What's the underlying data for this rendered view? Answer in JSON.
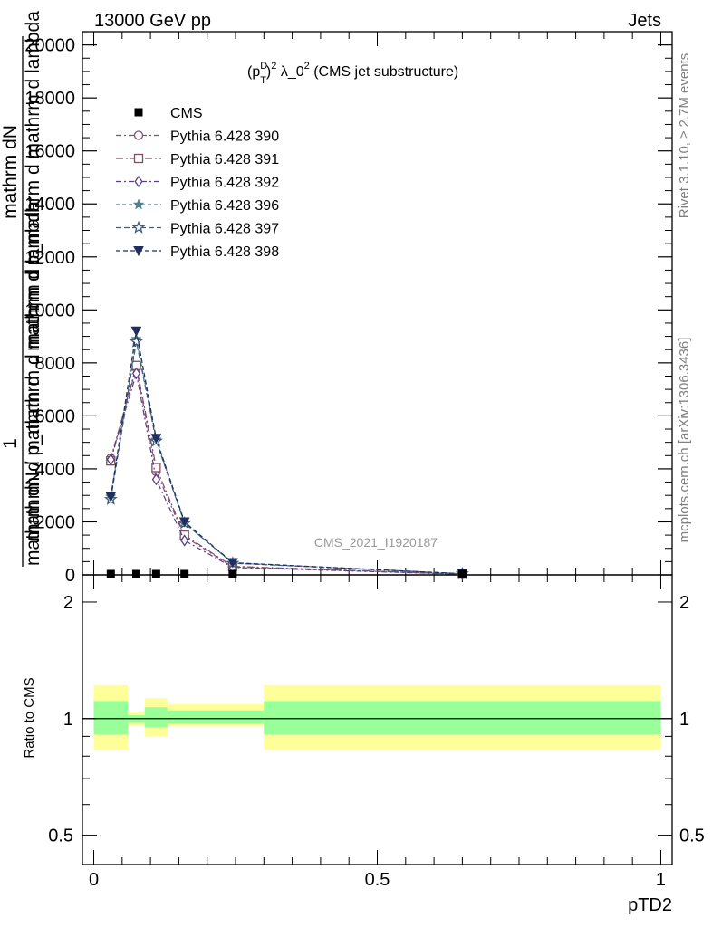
{
  "header": {
    "left": "13000 GeV pp",
    "right": "Jets"
  },
  "side_labels": {
    "rivet": "Rivet 3.1.10, ≥ 2.7M events",
    "mcplots": "mcplots.cern.ch [arXiv:1306.3436]"
  },
  "chart_data": [
    {
      "type": "line",
      "title": "(p_T^D)^2 λ_0^2 (CMS jet substructure)",
      "title_parts": {
        "p": "(p",
        "sup_d": "D",
        "sub_t": "T",
        "close": ")",
        "sup2": "2",
        "lambda": " λ_0",
        "sup2b": "2",
        "rest": " (CMS jet substructure)"
      },
      "watermark": "CMS_2021_I1920187",
      "ylabel": "1 / mathrm dN / mathrm d p_mathrm d mathrm d lambda",
      "ylabel_parts": {
        "one": "1",
        "dN_top": "mathrm dN",
        "den_top": "mathrm d p_mathrm d mathrm d lambda",
        "dN": "mathrm dN / mathrm d",
        "rest": "mathrm d p_mathrm d mathrm d lambda"
      },
      "xlim": [
        -0.02,
        1.02
      ],
      "ylim": [
        0,
        20500
      ],
      "yticks": [
        0,
        2000,
        4000,
        6000,
        8000,
        10000,
        12000,
        14000,
        16000,
        18000,
        20000
      ],
      "ytick_labels": [
        "0",
        "2000",
        "4000",
        "6000",
        "8000",
        "10000",
        "12000",
        "14000",
        "16000",
        "18000",
        "20000"
      ],
      "legend_position": "top-left",
      "cms": {
        "name": "CMS",
        "x": [
          0.03,
          0.075,
          0.11,
          0.16,
          0.245,
          0.65
        ],
        "y": [
          0,
          0,
          0,
          0,
          0,
          0
        ]
      },
      "series": [
        {
          "name": "Pythia 6.428 390",
          "color": "#7f4f7f",
          "marker": "circle-open",
          "x": [
            0.03,
            0.075,
            0.11,
            0.16,
            0.245,
            0.65
          ],
          "y": [
            4400,
            7800,
            3900,
            1450,
            300,
            30
          ]
        },
        {
          "name": "Pythia 6.428 391",
          "color": "#7f4f5f",
          "marker": "square-open",
          "x": [
            0.03,
            0.075,
            0.11,
            0.16,
            0.245,
            0.65
          ],
          "y": [
            4300,
            7900,
            4050,
            1500,
            320,
            30
          ]
        },
        {
          "name": "Pythia 6.428 392",
          "color": "#5a3f87",
          "marker": "diamond-open",
          "x": [
            0.03,
            0.075,
            0.11,
            0.16,
            0.245,
            0.65
          ],
          "y": [
            4350,
            7600,
            3600,
            1300,
            280,
            25
          ]
        },
        {
          "name": "Pythia 6.428 396",
          "color": "#4f7f8f",
          "marker": "star-filled",
          "x": [
            0.03,
            0.075,
            0.11,
            0.16,
            0.245,
            0.65
          ],
          "y": [
            2950,
            8900,
            5100,
            1950,
            450,
            45
          ]
        },
        {
          "name": "Pythia 6.428 397",
          "color": "#3f5f7f",
          "marker": "star-open",
          "x": [
            0.03,
            0.075,
            0.11,
            0.16,
            0.245,
            0.65
          ],
          "y": [
            2850,
            8800,
            5050,
            1950,
            440,
            45
          ]
        },
        {
          "name": "Pythia 6.428 398",
          "color": "#1f2f5f",
          "marker": "triangle-down-filled",
          "x": [
            0.03,
            0.075,
            0.11,
            0.16,
            0.245,
            0.65
          ],
          "y": [
            2950,
            9200,
            5150,
            2000,
            460,
            45
          ]
        }
      ]
    },
    {
      "type": "area",
      "ylabel": "Ratio to CMS",
      "xlabel": "pTD2",
      "xlim": [
        -0.02,
        1.02
      ],
      "ylim": [
        0.42,
        2.35
      ],
      "ytick_labels": [
        "0.5",
        "1",
        "2"
      ],
      "xtick_labels": [
        "0",
        "0.5",
        "1"
      ],
      "reference": 1,
      "bins": [
        0,
        0.06,
        0.09,
        0.13,
        0.3,
        1.0
      ],
      "band_stat": [
        [
          0.91,
          1.11
        ],
        [
          0.975,
          1.02
        ],
        [
          0.95,
          1.07
        ],
        [
          0.97,
          1.05
        ],
        [
          0.91,
          1.11
        ]
      ],
      "band_total": [
        [
          0.83,
          1.22
        ],
        [
          0.96,
          1.04
        ],
        [
          0.9,
          1.13
        ],
        [
          0.955,
          1.09
        ],
        [
          0.83,
          1.22
        ]
      ],
      "band_colors": {
        "total": "#ffff99",
        "stat": "#99ff99"
      }
    }
  ]
}
